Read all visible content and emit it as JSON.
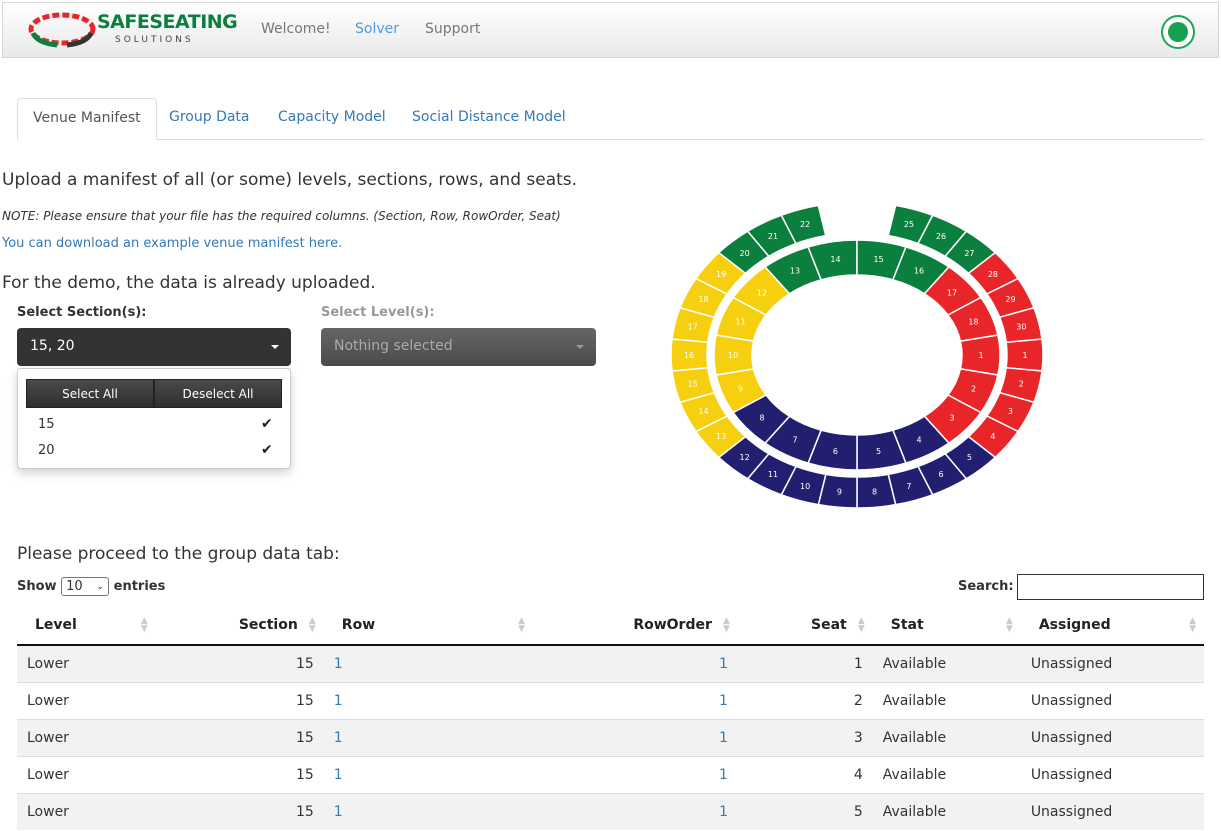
{
  "nav": {
    "brand_top": "SAFESEATING",
    "brand_bottom": "SOLUTIONS",
    "links": [
      "Welcome!",
      "Solver",
      "Support"
    ],
    "active": "Solver"
  },
  "tabs": [
    "Venue Manifest",
    "Group Data",
    "Capacity Model",
    "Social Distance Model"
  ],
  "upload_heading": "Upload a manifest of all (or some) levels, sections, rows, and seats.",
  "note": "NOTE: Please ensure that your file has the required columns. (Section, Row, RowOrder, Seat)",
  "download_link": "You can download an example venue manifest here.",
  "demo_text": "For the demo, the data is already uploaded.",
  "section_select": {
    "label": "Select Section(s):",
    "value": "15, 20",
    "select_all": "Select All",
    "deselect_all": "Deselect All",
    "options": [
      {
        "label": "15",
        "checked": true
      },
      {
        "label": "20",
        "checked": true
      }
    ]
  },
  "level_select": {
    "label": "Select Level(s):",
    "value": "Nothing selected"
  },
  "colors": {
    "green": "#0b7f3d",
    "red": "#e8262a",
    "navy": "#231f70",
    "yellow": "#f6cf0f"
  },
  "stadium": {
    "upper": [
      [
        "1",
        "red"
      ],
      [
        "2",
        "red"
      ],
      [
        "3",
        "red"
      ],
      [
        "4",
        "red"
      ],
      [
        "5",
        "navy"
      ],
      [
        "6",
        "navy"
      ],
      [
        "7",
        "navy"
      ],
      [
        "8",
        "navy"
      ],
      [
        "9",
        "navy"
      ],
      [
        "10",
        "navy"
      ],
      [
        "11",
        "navy"
      ],
      [
        "12",
        "navy"
      ],
      [
        "13",
        "yellow"
      ],
      [
        "14",
        "yellow"
      ],
      [
        "15",
        "yellow"
      ],
      [
        "16",
        "yellow"
      ],
      [
        "17",
        "yellow"
      ],
      [
        "18",
        "yellow"
      ],
      [
        "19",
        "yellow"
      ],
      [
        "20",
        "green"
      ],
      [
        "21",
        "green"
      ],
      [
        "22",
        "green"
      ],
      [
        "",
        "white"
      ],
      [
        "",
        "white"
      ],
      [
        "25",
        "green"
      ],
      [
        "26",
        "green"
      ],
      [
        "27",
        "green"
      ],
      [
        "28",
        "red"
      ],
      [
        "29",
        "red"
      ],
      [
        "30",
        "red"
      ]
    ],
    "lower": [
      [
        "1",
        "red"
      ],
      [
        "2",
        "red"
      ],
      [
        "3",
        "red"
      ],
      [
        "4",
        "navy"
      ],
      [
        "5",
        "navy"
      ],
      [
        "6",
        "navy"
      ],
      [
        "7",
        "navy"
      ],
      [
        "8",
        "navy"
      ],
      [
        "9",
        "yellow"
      ],
      [
        "10",
        "yellow"
      ],
      [
        "11",
        "yellow"
      ],
      [
        "12",
        "yellow"
      ],
      [
        "13",
        "green"
      ],
      [
        "14",
        "green"
      ],
      [
        "15",
        "green"
      ],
      [
        "16",
        "green"
      ],
      [
        "17",
        "red"
      ],
      [
        "18",
        "red"
      ]
    ]
  },
  "proceed_text": "Please proceed to the group data tab:",
  "table": {
    "show": "Show",
    "entries": "entries",
    "length": "10",
    "search_label": "Search:",
    "search_value": "",
    "columns": [
      "Level",
      "Section",
      "Row",
      "RowOrder",
      "Seat",
      "Stat",
      "Assigned"
    ],
    "rows": [
      [
        "Lower",
        "15",
        "1",
        "1",
        "1",
        "Available",
        "Unassigned"
      ],
      [
        "Lower",
        "15",
        "1",
        "1",
        "2",
        "Available",
        "Unassigned"
      ],
      [
        "Lower",
        "15",
        "1",
        "1",
        "3",
        "Available",
        "Unassigned"
      ],
      [
        "Lower",
        "15",
        "1",
        "1",
        "4",
        "Available",
        "Unassigned"
      ],
      [
        "Lower",
        "15",
        "1",
        "1",
        "5",
        "Available",
        "Unassigned"
      ]
    ]
  }
}
